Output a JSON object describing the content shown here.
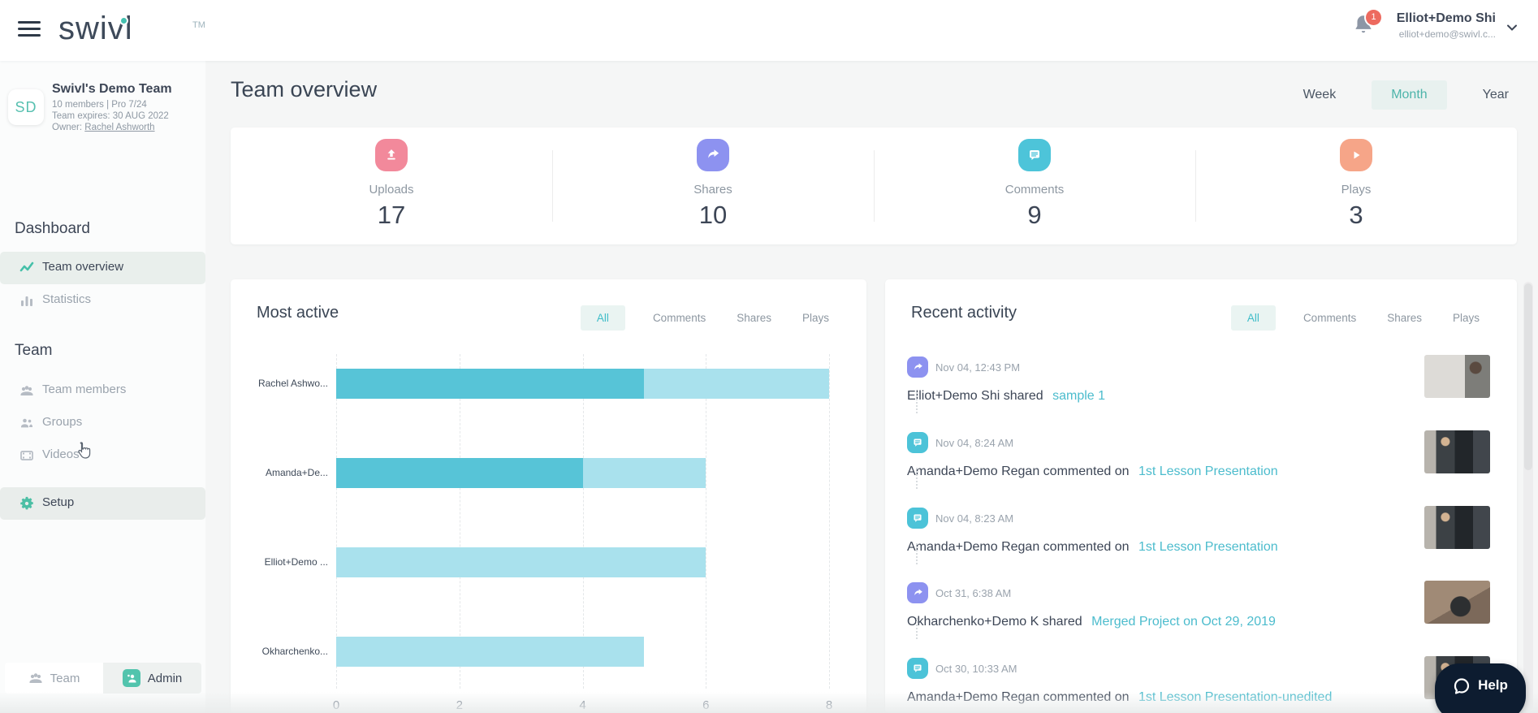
{
  "header": {
    "logo_text": "swivl",
    "logo_tm": "TM",
    "notification_badge": "1",
    "user_name": "Elliot+Demo Shi",
    "user_email": "elliot+demo@swivl.c..."
  },
  "sidebar": {
    "team": {
      "avatar_initials": "SD",
      "name": "Swivl's Demo Team",
      "meta": "10 members | Pro 7/24",
      "expires": "Team expires: 30 AUG 2022",
      "owner_label": "Owner: ",
      "owner_name": "Rachel Ashworth"
    },
    "dashboard_heading": "Dashboard",
    "dashboard_items": [
      {
        "label": "Team overview",
        "icon": "trend-icon",
        "active": true
      },
      {
        "label": "Statistics",
        "icon": "bar-chart-icon",
        "active": false
      }
    ],
    "team_heading": "Team",
    "team_items": [
      {
        "label": "Team members",
        "icon": "people-icon"
      },
      {
        "label": "Groups",
        "icon": "group-icon"
      },
      {
        "label": "Videos",
        "icon": "film-icon"
      }
    ],
    "setup_label": "Setup",
    "footer": {
      "team_label": "Team",
      "admin_label": "Admin"
    }
  },
  "main": {
    "title": "Team overview",
    "period_tabs": [
      {
        "label": "Week",
        "active": false
      },
      {
        "label": "Month",
        "active": true
      },
      {
        "label": "Year",
        "active": false
      }
    ],
    "stats": [
      {
        "label": "Uploads",
        "value": "17",
        "color": "#f2899b",
        "icon": "upload-icon"
      },
      {
        "label": "Shares",
        "value": "10",
        "color": "#8d92f0",
        "icon": "share-icon"
      },
      {
        "label": "Comments",
        "value": "9",
        "color": "#4dc4d9",
        "icon": "comment-icon"
      },
      {
        "label": "Plays",
        "value": "3",
        "color": "#f6a588",
        "icon": "play-icon"
      }
    ],
    "most_active": {
      "title": "Most active",
      "tabs": [
        {
          "label": "All",
          "active": true
        },
        {
          "label": "Comments",
          "active": false
        },
        {
          "label": "Shares",
          "active": false
        },
        {
          "label": "Plays",
          "active": false
        }
      ]
    },
    "recent_activity": {
      "title": "Recent activity",
      "tabs": [
        {
          "label": "All",
          "active": true
        },
        {
          "label": "Comments",
          "active": false
        },
        {
          "label": "Shares",
          "active": false
        },
        {
          "label": "Plays",
          "active": false
        }
      ],
      "entries": [
        {
          "type": "share",
          "icon": "share-icon",
          "timestamp": "Nov 04, 12:43 PM",
          "actor": "Elliot+Demo Shi",
          "action": "shared",
          "target": "sample 1",
          "thumbnail": "man-presenting"
        },
        {
          "type": "comment",
          "icon": "comment-icon",
          "timestamp": "Nov 04, 8:24 AM",
          "actor": "Amanda+Demo Regan",
          "action": "commented on",
          "target": "1st Lesson Presentation",
          "thumbnail": "woman-classroom"
        },
        {
          "type": "comment",
          "icon": "comment-icon",
          "timestamp": "Nov 04, 8:23 AM",
          "actor": "Amanda+Demo Regan",
          "action": "commented on",
          "target": "1st Lesson Presentation",
          "thumbnail": "woman-classroom"
        },
        {
          "type": "share",
          "icon": "share-icon",
          "timestamp": "Oct 31, 6:38 AM",
          "actor": "Okharchenko+Demo K",
          "action": "shared",
          "target": "Merged Project on Oct 29, 2019",
          "thumbnail": "device-desk"
        },
        {
          "type": "comment",
          "icon": "comment-icon",
          "timestamp": "Oct 30, 10:33 AM",
          "actor": "Amanda+Demo Regan",
          "action": "commented on",
          "target": "1st Lesson Presentation-unedited",
          "thumbnail": "woman-classroom"
        }
      ]
    },
    "help_label": "Help"
  },
  "chart_data": {
    "type": "bar",
    "orientation": "horizontal",
    "title": "Most active",
    "categories": [
      "Rachel Ashwo...",
      "Amanda+De...",
      "Elliot+Demo ...",
      "Okharchenko..."
    ],
    "series": [
      {
        "name": "primary-activity",
        "color": "#57c4d7",
        "values": [
          5,
          4,
          0,
          0
        ]
      },
      {
        "name": "secondary-activity",
        "color": "#a9e1ed",
        "values": [
          3,
          2,
          6,
          5
        ]
      }
    ],
    "totals": [
      8,
      6,
      6,
      5
    ],
    "xlim": [
      0,
      8
    ],
    "xticks": [
      "0",
      "2",
      "4",
      "6",
      "8"
    ],
    "grid": "dashed-vertical",
    "legend": "none"
  },
  "colors": {
    "accent_teal": "#45c0a9",
    "link_teal": "#4cbccd",
    "tab_active_teal": "#3fbdc9",
    "badge_red": "#ed6a5f"
  }
}
